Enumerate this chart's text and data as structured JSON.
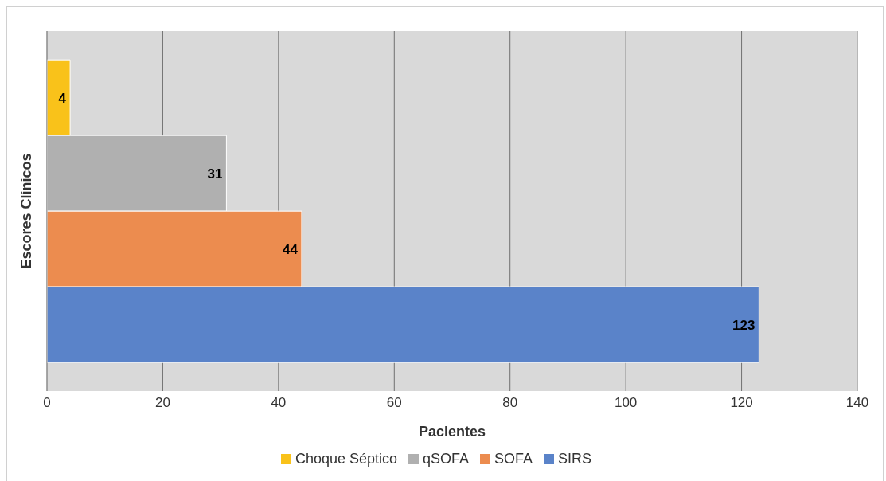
{
  "chart_data": {
    "type": "bar",
    "orientation": "horizontal",
    "xlabel": "Pacientes",
    "ylabel": "Escores Clínicos",
    "categories": [
      null
    ],
    "series": [
      {
        "name": "Choque Séptico",
        "color": "#f9c21a",
        "values": [
          4
        ]
      },
      {
        "name": "qSOFA",
        "color": "#b0b0b0",
        "values": [
          31
        ]
      },
      {
        "name": "SOFA",
        "color": "#ec8c4f",
        "values": [
          44
        ]
      },
      {
        "name": "SIRS",
        "color": "#5a83c9",
        "values": [
          123
        ]
      }
    ],
    "xlim": [
      0,
      140
    ],
    "xticks": [
      0,
      20,
      40,
      60,
      80,
      100,
      120,
      140
    ],
    "grid": "x",
    "legend": "bottom",
    "data_labels": true
  }
}
